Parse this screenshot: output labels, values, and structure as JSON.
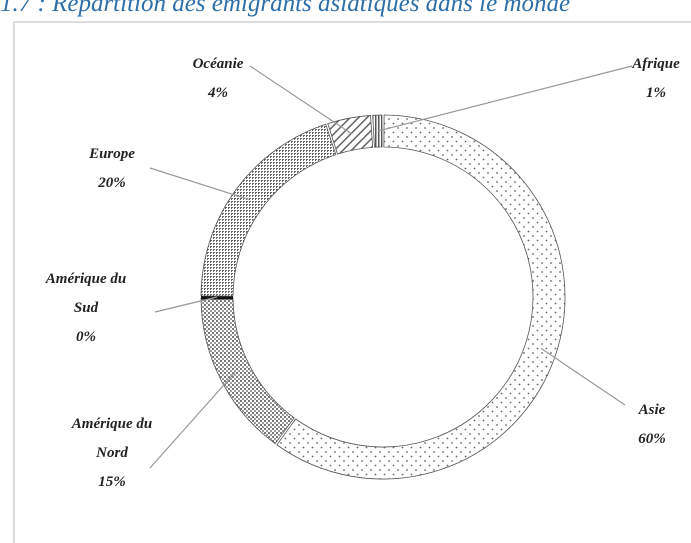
{
  "chart_data": {
    "type": "donut",
    "title": "1.7 : Répartition des émigrants asiatiques dans le monde",
    "categories": [
      "Asie",
      "Amérique du Nord",
      "Amérique du Sud",
      "Europe",
      "Océanie",
      "Afrique"
    ],
    "values": [
      60,
      15,
      0,
      20,
      4,
      1
    ],
    "value_labels": [
      "60%",
      "15%",
      "0%",
      "20%",
      "4%",
      "1%"
    ]
  }
}
